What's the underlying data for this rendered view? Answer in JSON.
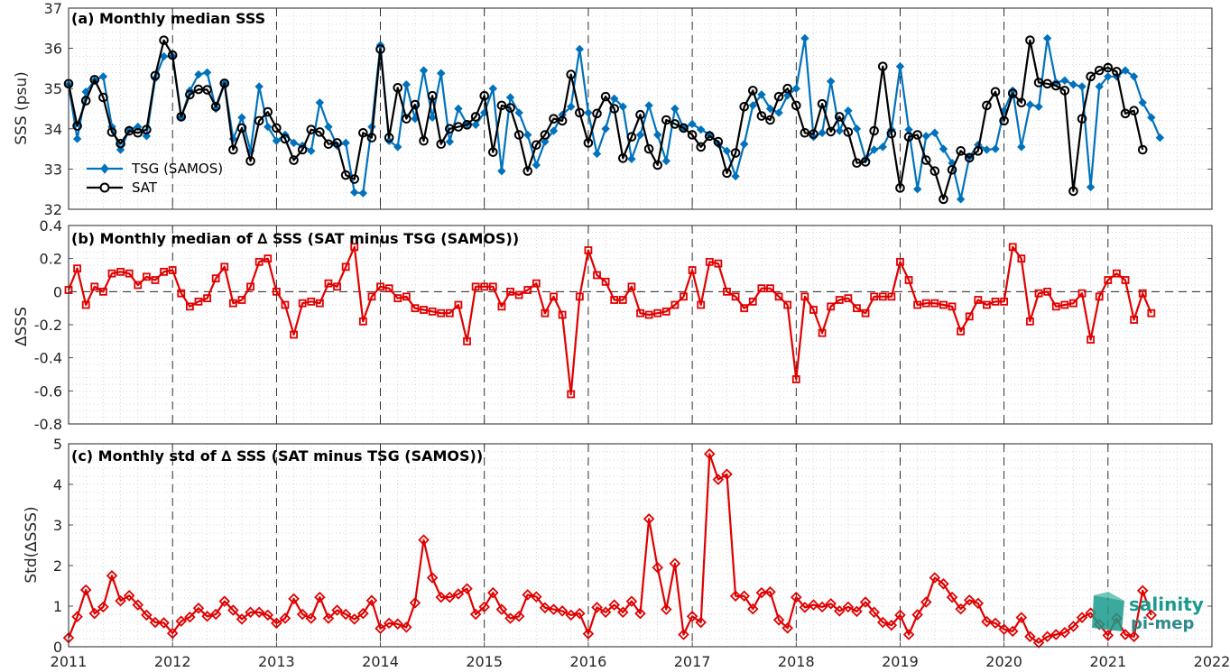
{
  "chart_data": [
    {
      "type": "line",
      "panel": "a",
      "title": "(a) Monthly median SSS",
      "ylabel": "SSS (psu)",
      "xlim": [
        2011,
        2022
      ],
      "ylim": [
        32,
        37
      ],
      "yticks": [
        32,
        33,
        34,
        35,
        36,
        37
      ],
      "grid": true,
      "legend": "bottom-left",
      "series": [
        {
          "name": "TSG (SAMOS)",
          "color": "#0072bd",
          "marker": "diamond",
          "values": [
            35.1,
            33.75,
            34.92,
            35.2,
            35.3,
            34.05,
            33.48,
            33.98,
            34.05,
            33.82,
            35.25,
            35.8,
            35.8,
            34.28,
            34.95,
            35.35,
            35.4,
            34.5,
            35.12,
            33.75,
            34.28,
            33.45,
            35.05,
            34.05,
            33.7,
            33.85,
            33.65,
            33.58,
            33.45,
            34.65,
            34.05,
            33.58,
            33.65,
            32.42,
            32.4,
            34.05,
            36.08,
            33.7,
            33.55,
            35.1,
            34.25,
            35.45,
            34.28,
            35.38,
            33.68,
            34.5,
            34.12,
            34.1,
            34.4,
            35.0,
            32.95,
            34.78,
            34.4,
            33.85,
            33.1,
            33.68,
            33.95,
            34.35,
            34.55,
            35.98,
            34.4,
            33.38,
            34.0,
            34.75,
            34.55,
            33.25,
            33.85,
            34.58,
            33.85,
            33.2,
            34.5,
            34.02,
            34.12,
            33.98,
            33.86,
            33.62,
            33.45,
            32.82,
            33.62,
            34.58,
            34.85,
            34.5,
            34.4,
            34.83,
            35.0,
            36.25,
            33.8,
            33.9,
            35.18,
            33.95,
            34.45,
            34.0,
            33.25,
            33.48,
            33.55,
            33.98,
            35.55,
            33.98,
            32.5,
            33.82,
            33.9,
            33.5,
            33.15,
            32.25,
            33.3,
            33.6,
            33.48,
            33.5,
            34.45,
            34.95,
            33.55,
            34.6,
            34.55,
            36.25,
            35.15,
            35.2,
            35.1,
            35.05,
            32.55,
            35.05,
            35.3,
            35.3,
            35.45,
            35.3,
            34.65,
            34.28,
            33.78
          ]
        },
        {
          "name": "SAT",
          "color": "#000000",
          "marker": "circle",
          "values": [
            35.12,
            34.07,
            34.7,
            35.22,
            34.78,
            33.92,
            33.63,
            33.95,
            33.9,
            33.98,
            35.32,
            36.2,
            35.83,
            34.3,
            34.85,
            34.98,
            34.97,
            34.55,
            35.13,
            33.48,
            34.02,
            33.2,
            34.2,
            34.42,
            34.02,
            33.75,
            33.22,
            33.48,
            33.98,
            33.92,
            33.62,
            33.65,
            32.85,
            32.75,
            33.9,
            33.78,
            35.98,
            33.78,
            35.02,
            34.25,
            34.6,
            33.7,
            34.82,
            33.62,
            34.0,
            34.05,
            34.1,
            34.3,
            34.82,
            33.42,
            34.58,
            34.52,
            33.85,
            32.95,
            33.6,
            33.85,
            34.25,
            34.2,
            35.35,
            34.4,
            33.65,
            34.38,
            34.8,
            34.5,
            33.27,
            33.8,
            34.35,
            33.5,
            33.1,
            34.22,
            34.12,
            34.02,
            33.85,
            33.55,
            33.82,
            33.68,
            32.9,
            33.4,
            34.55,
            34.95,
            34.32,
            34.22,
            34.8,
            35.0,
            34.58,
            33.9,
            33.87,
            34.62,
            33.93,
            34.3,
            33.92,
            33.15,
            33.18,
            33.95,
            35.55,
            33.88,
            32.53,
            33.8,
            33.85,
            33.22,
            32.95,
            32.25,
            32.98,
            33.45,
            33.28,
            33.45,
            34.58,
            34.92,
            34.2,
            34.88,
            34.65,
            36.2,
            35.15,
            35.12,
            35.07,
            34.95,
            32.45,
            34.25,
            35.3,
            35.45,
            35.52,
            35.42,
            34.38,
            34.45,
            33.48
          ]
        }
      ]
    },
    {
      "type": "line",
      "panel": "b",
      "title": "(b) Monthly median of ∆ SSS (SAT minus TSG (SAMOS))",
      "ylabel": "∆SSS",
      "xlim": [
        2011,
        2022
      ],
      "ylim": [
        -0.8,
        0.4
      ],
      "yticks": [
        -0.8,
        -0.6,
        -0.4,
        -0.2,
        0,
        0.2,
        0.4
      ],
      "zero_line": true,
      "grid": true,
      "series": [
        {
          "name": "",
          "color": "#e00000",
          "marker": "square",
          "values": [
            0.01,
            0.14,
            -0.08,
            0.03,
            0.0,
            0.11,
            0.12,
            0.11,
            0.04,
            0.09,
            0.07,
            0.12,
            0.13,
            -0.01,
            -0.09,
            -0.06,
            -0.04,
            0.08,
            0.15,
            -0.07,
            -0.05,
            0.03,
            0.18,
            0.2,
            0.0,
            -0.08,
            -0.26,
            -0.07,
            -0.06,
            -0.07,
            0.05,
            0.03,
            0.15,
            0.27,
            -0.18,
            -0.03,
            0.03,
            0.02,
            -0.04,
            -0.03,
            -0.1,
            -0.11,
            -0.12,
            -0.13,
            -0.13,
            -0.08,
            -0.3,
            0.03,
            0.03,
            0.03,
            -0.09,
            0.0,
            -0.02,
            0.01,
            0.05,
            -0.13,
            -0.03,
            -0.14,
            -0.62,
            -0.03,
            0.25,
            0.1,
            0.06,
            -0.05,
            -0.05,
            0.03,
            -0.13,
            -0.14,
            -0.13,
            -0.12,
            -0.08,
            -0.03,
            0.13,
            -0.08,
            0.18,
            0.17,
            0.0,
            -0.03,
            -0.1,
            -0.06,
            0.02,
            0.02,
            -0.03,
            -0.08,
            -0.53,
            -0.03,
            -0.11,
            -0.25,
            -0.09,
            -0.05,
            -0.04,
            -0.1,
            -0.13,
            -0.03,
            -0.03,
            -0.03,
            0.18,
            0.07,
            -0.08,
            -0.07,
            -0.07,
            -0.08,
            -0.09,
            -0.24,
            -0.15,
            -0.05,
            -0.08,
            -0.06,
            -0.06,
            0.27,
            0.2,
            -0.18,
            -0.01,
            0.0,
            -0.09,
            -0.08,
            -0.07,
            -0.01,
            -0.29,
            -0.03,
            0.07,
            0.11,
            0.07,
            -0.17,
            -0.01,
            -0.13
          ]
        }
      ]
    },
    {
      "type": "line",
      "panel": "c",
      "title": "(c) Monthly std of ∆ SSS (SAT minus TSG (SAMOS))",
      "ylabel": "Std(∆SSS)",
      "xlim": [
        2011,
        2022
      ],
      "ylim": [
        0,
        5
      ],
      "yticks": [
        0,
        1,
        2,
        3,
        4,
        5
      ],
      "xticks": [
        "2011",
        "2012",
        "2013",
        "2014",
        "2015",
        "2016",
        "2017",
        "2018",
        "2019",
        "2020",
        "2021",
        "2022"
      ],
      "grid": true,
      "series": [
        {
          "name": "",
          "color": "#e00000",
          "marker": "diamond",
          "values": [
            0.22,
            0.74,
            1.4,
            0.82,
            0.98,
            1.75,
            1.13,
            1.26,
            1.03,
            0.78,
            0.6,
            0.59,
            0.33,
            0.63,
            0.73,
            0.95,
            0.75,
            0.8,
            1.12,
            0.9,
            0.68,
            0.85,
            0.85,
            0.78,
            0.58,
            0.7,
            1.18,
            0.8,
            0.7,
            1.22,
            0.7,
            0.9,
            0.8,
            0.68,
            0.82,
            1.14,
            0.45,
            0.58,
            0.56,
            0.48,
            1.08,
            2.63,
            1.7,
            1.22,
            1.22,
            1.3,
            1.43,
            0.8,
            0.98,
            1.33,
            0.92,
            0.7,
            0.75,
            1.28,
            1.23,
            0.96,
            0.92,
            0.88,
            0.78,
            0.82,
            0.32,
            0.97,
            0.85,
            1.03,
            0.85,
            1.12,
            0.82,
            3.15,
            1.95,
            0.92,
            2.05,
            0.3,
            0.75,
            0.6,
            4.75,
            4.12,
            4.25,
            1.25,
            1.25,
            0.93,
            1.33,
            1.35,
            0.66,
            0.46,
            1.22,
            0.97,
            1.03,
            0.98,
            1.06,
            0.88,
            0.98,
            0.87,
            1.1,
            0.85,
            0.6,
            0.53,
            0.78,
            0.3,
            0.79,
            1.1,
            1.7,
            1.55,
            1.22,
            0.93,
            1.15,
            1.07,
            0.62,
            0.58,
            0.43,
            0.38,
            0.72,
            0.25,
            0.1,
            0.25,
            0.3,
            0.35,
            0.5,
            0.72,
            0.83,
            0.55,
            0.28,
            0.7,
            0.3,
            0.25,
            1.38,
            0.78
          ]
        }
      ]
    }
  ],
  "logo": {
    "line1": "salinity",
    "line2": "pi-mep"
  }
}
